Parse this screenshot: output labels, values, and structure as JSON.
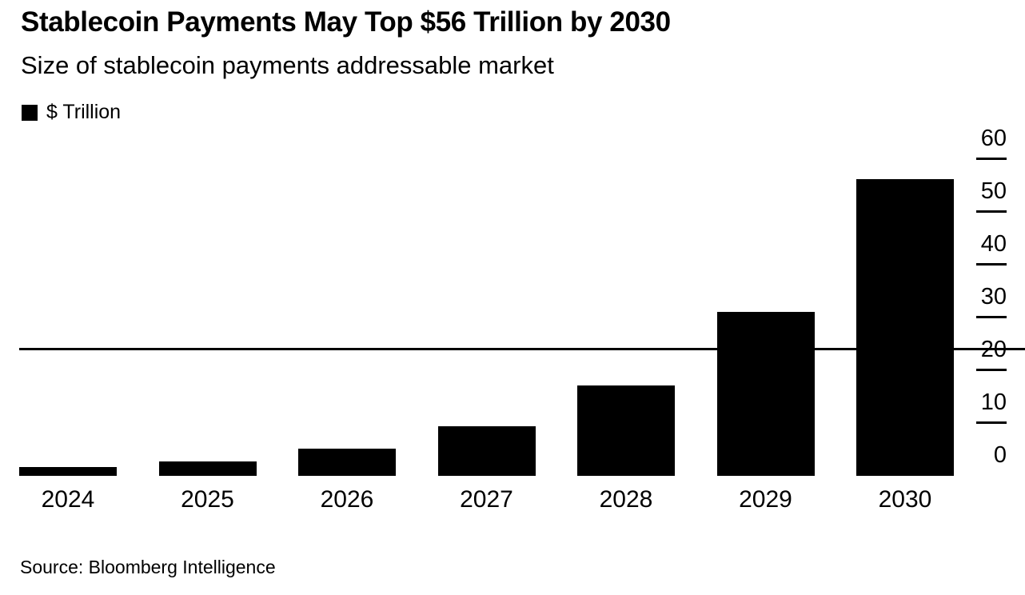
{
  "header": {
    "title": "Stablecoin Payments May Top $56 Trillion by 2030",
    "subtitle": "Size of stablecoin payments addressable market"
  },
  "legend": {
    "label": "$ Trillion",
    "swatch_color": "#000000"
  },
  "chart_data": {
    "type": "bar",
    "title": "Stablecoin Payments May Top $56 Trillion by 2030",
    "subtitle": "Size of stablecoin payments addressable market",
    "categories": [
      "2024",
      "2025",
      "2026",
      "2027",
      "2028",
      "2029",
      "2030"
    ],
    "series": [
      {
        "name": "$ Trillion",
        "values": [
          1.7,
          2.8,
          5.1,
          9.4,
          17.1,
          31,
          56.2
        ]
      }
    ],
    "xlabel": "",
    "ylabel": "$ Trillion",
    "ylim": [
      0,
      60
    ],
    "yticks": [
      0,
      10,
      20,
      30,
      40,
      50,
      60
    ],
    "axis_side": "right",
    "grid": false,
    "legend_position": "top-left",
    "bar_color": "#000000",
    "background_color": "#ffffff"
  },
  "footer": {
    "source": "Source: Bloomberg Intelligence"
  }
}
